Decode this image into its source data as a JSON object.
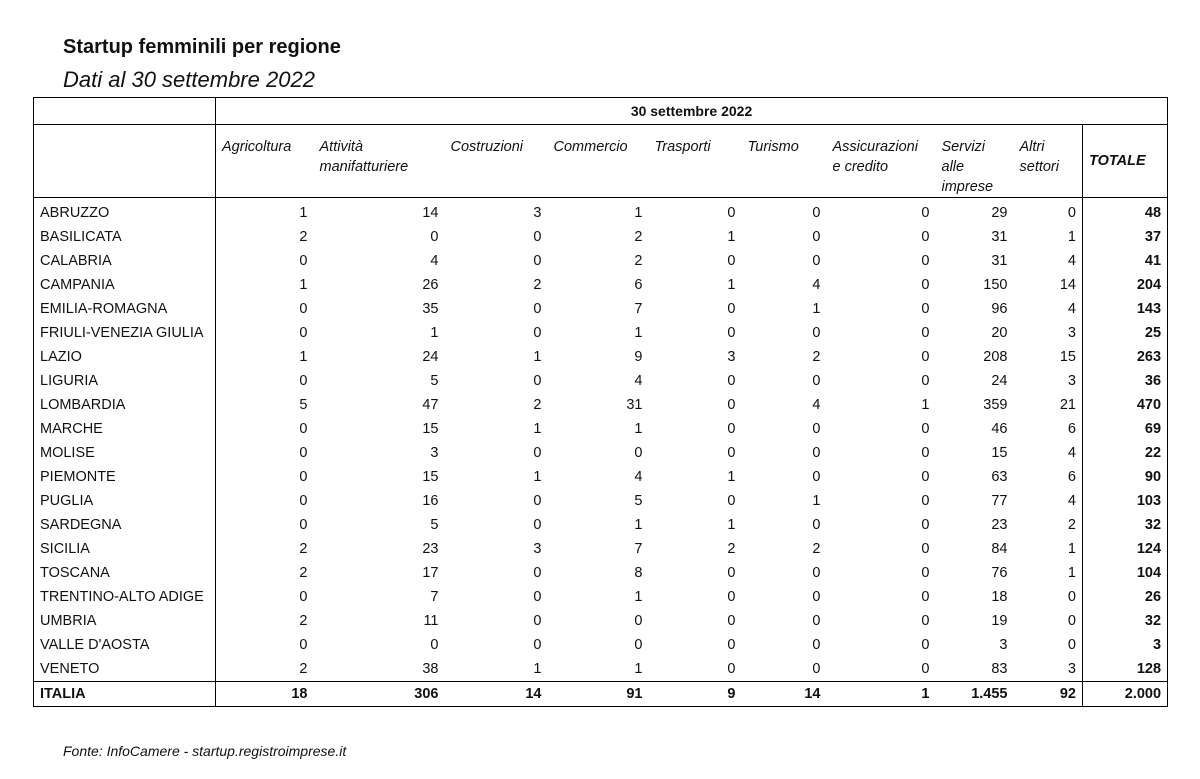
{
  "title": "Startup femminili per regione",
  "subtitle": "Dati al 30 settembre 2022",
  "table": {
    "period": "30 settembre 2022",
    "columns": [
      "Agricoltura",
      "Attività manifatturiere",
      "Costruzioni",
      "Commercio",
      "Trasporti",
      "Turismo",
      "Assicurazioni e credito",
      "Servizi alle imprese",
      "Altri settori",
      "TOTALE"
    ],
    "rows": [
      [
        "ABRUZZO",
        "1",
        "14",
        "3",
        "1",
        "0",
        "0",
        "0",
        "29",
        "0",
        "48"
      ],
      [
        "BASILICATA",
        "2",
        "0",
        "0",
        "2",
        "1",
        "0",
        "0",
        "31",
        "1",
        "37"
      ],
      [
        "CALABRIA",
        "0",
        "4",
        "0",
        "2",
        "0",
        "0",
        "0",
        "31",
        "4",
        "41"
      ],
      [
        "CAMPANIA",
        "1",
        "26",
        "2",
        "6",
        "1",
        "4",
        "0",
        "150",
        "14",
        "204"
      ],
      [
        "EMILIA-ROMAGNA",
        "0",
        "35",
        "0",
        "7",
        "0",
        "1",
        "0",
        "96",
        "4",
        "143"
      ],
      [
        "FRIULI-VENEZIA GIULIA",
        "0",
        "1",
        "0",
        "1",
        "0",
        "0",
        "0",
        "20",
        "3",
        "25"
      ],
      [
        "LAZIO",
        "1",
        "24",
        "1",
        "9",
        "3",
        "2",
        "0",
        "208",
        "15",
        "263"
      ],
      [
        "LIGURIA",
        "0",
        "5",
        "0",
        "4",
        "0",
        "0",
        "0",
        "24",
        "3",
        "36"
      ],
      [
        "LOMBARDIA",
        "5",
        "47",
        "2",
        "31",
        "0",
        "4",
        "1",
        "359",
        "21",
        "470"
      ],
      [
        "MARCHE",
        "0",
        "15",
        "1",
        "1",
        "0",
        "0",
        "0",
        "46",
        "6",
        "69"
      ],
      [
        "MOLISE",
        "0",
        "3",
        "0",
        "0",
        "0",
        "0",
        "0",
        "15",
        "4",
        "22"
      ],
      [
        "PIEMONTE",
        "0",
        "15",
        "1",
        "4",
        "1",
        "0",
        "0",
        "63",
        "6",
        "90"
      ],
      [
        "PUGLIA",
        "0",
        "16",
        "0",
        "5",
        "0",
        "1",
        "0",
        "77",
        "4",
        "103"
      ],
      [
        "SARDEGNA",
        "0",
        "5",
        "0",
        "1",
        "1",
        "0",
        "0",
        "23",
        "2",
        "32"
      ],
      [
        "SICILIA",
        "2",
        "23",
        "3",
        "7",
        "2",
        "2",
        "0",
        "84",
        "1",
        "124"
      ],
      [
        "TOSCANA",
        "2",
        "17",
        "0",
        "8",
        "0",
        "0",
        "0",
        "76",
        "1",
        "104"
      ],
      [
        "TRENTINO-ALTO ADIGE",
        "0",
        "7",
        "0",
        "1",
        "0",
        "0",
        "0",
        "18",
        "0",
        "26"
      ],
      [
        "UMBRIA",
        "2",
        "11",
        "0",
        "0",
        "0",
        "0",
        "0",
        "19",
        "0",
        "32"
      ],
      [
        "VALLE D'AOSTA",
        "0",
        "0",
        "0",
        "0",
        "0",
        "0",
        "0",
        "3",
        "0",
        "3"
      ],
      [
        "VENETO",
        "2",
        "38",
        "1",
        "1",
        "0",
        "0",
        "0",
        "83",
        "3",
        "128"
      ]
    ],
    "total": [
      "ITALIA",
      "18",
      "306",
      "14",
      "91",
      "9",
      "14",
      "1",
      "1.455",
      "92",
      "2.000"
    ]
  },
  "source": "Fonte: InfoCamere - startup.registroimprese.it"
}
